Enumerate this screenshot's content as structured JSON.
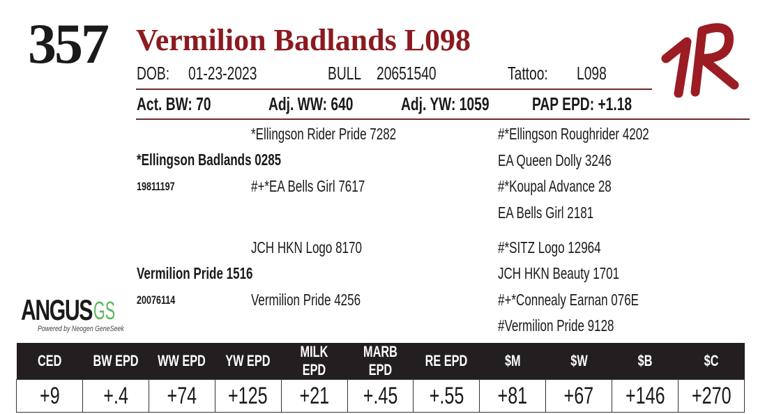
{
  "lot_number": "357",
  "animal_name": "Vermilion Badlands L098",
  "colors": {
    "name": "#8b1a1f",
    "header_bar": "#231f20",
    "logo_green": "#5cb85c"
  },
  "info": {
    "dob_label": "DOB:",
    "dob": "01-23-2023",
    "sex": "BULL",
    "registration": "20651540",
    "tattoo_label": "Tattoo:",
    "tattoo": "L098"
  },
  "weights": {
    "bw": "Act. BW: 70",
    "ww": "Adj. WW: 640",
    "yw": "Adj. YW: 1059",
    "pap": "PAP EPD: +1.18"
  },
  "pedigree": {
    "sire": {
      "name": "*Ellingson Badlands 0285",
      "reg": "19811197",
      "sire": "*Ellingson Rider Pride 7282",
      "dam": "#+*EA Bells Girl 7617",
      "ss": "#*Ellingson Roughrider 4202",
      "sd": "EA Queen Dolly 3246",
      "ds": "#*Koupal Advance 28",
      "dd": "EA Bells Girl 2181"
    },
    "dam": {
      "name": "Vermilion Pride 1516",
      "reg": "20076114",
      "sire": "JCH HKN Logo 8170",
      "dam": "Vermilion Pride 4256",
      "ss": "#*SITZ Logo 12964",
      "sd": "JCH HKN Beauty 1701",
      "ds": "#+*Connealy Earnan 076E",
      "dd": "#Vermilion Pride 9128"
    }
  },
  "logo": {
    "brand": "ANGUS",
    "brand_suffix": "GS",
    "tagline": "Powered by Neogen GeneSeek",
    "ranch_mark": "1R"
  },
  "epd": {
    "headers": [
      "CED",
      "BW EPD",
      "WW EPD",
      "YW EPD",
      "MILK EPD",
      "MARB EPD",
      "RE EPD",
      "$M",
      "$W",
      "$B",
      "$C"
    ],
    "values": [
      "+9",
      "+.4",
      "+74",
      "+125",
      "+21",
      "+.45",
      "+.55",
      "+81",
      "+67",
      "+146",
      "+270"
    ]
  }
}
